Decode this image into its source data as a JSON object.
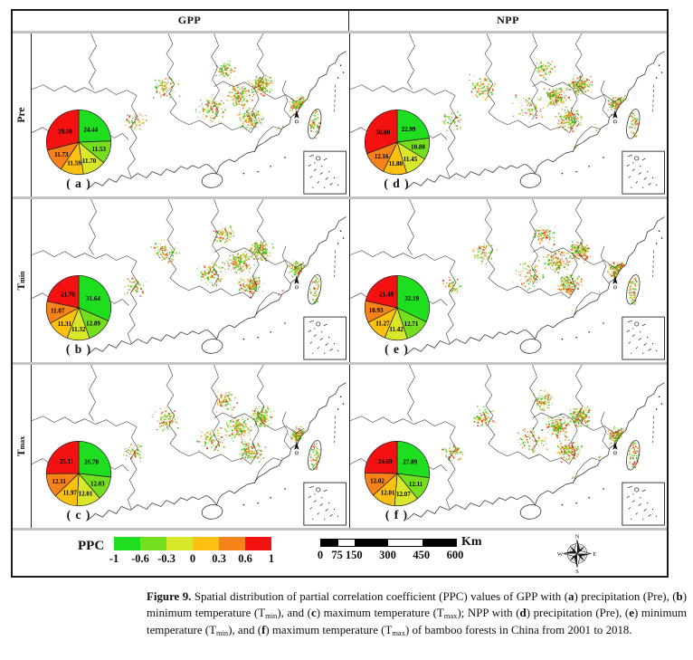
{
  "header": {
    "gpp": "GPP",
    "npp": "NPP"
  },
  "rows": [
    {
      "label": "Pre",
      "sub": ""
    },
    {
      "label": "T",
      "sub": "min"
    },
    {
      "label": "T",
      "sub": "max"
    }
  ],
  "panels": [
    {
      "id": "a",
      "tag": "( a )",
      "row": "Pre",
      "column": "GPP",
      "pie": {
        "values": [
          "24.44",
          "11.53",
          "11.70",
          "11.59",
          "11.73",
          "29.00"
        ]
      }
    },
    {
      "id": "b",
      "tag": "( b )",
      "row": "Tmin",
      "column": "GPP",
      "pie": {
        "values": [
          "31.64",
          "12.89",
          "11.32",
          "11.31",
          "11.07",
          "21.76"
        ]
      }
    },
    {
      "id": "c",
      "tag": "( c )",
      "row": "Tmax",
      "column": "GPP",
      "pie": {
        "values": [
          "26.78",
          "12.03",
          "12.01",
          "11.97",
          "12.11",
          "25.11"
        ]
      }
    },
    {
      "id": "d",
      "tag": "( d )",
      "row": "Pre",
      "column": "NPP",
      "pie": {
        "values": [
          "22.99",
          "10.80",
          "11.45",
          "11.80",
          "12.16",
          "30.80"
        ]
      }
    },
    {
      "id": "e",
      "tag": "( e )",
      "row": "Tmin",
      "column": "NPP",
      "pie": {
        "values": [
          "32.19",
          "12.71",
          "11.42",
          "11.27",
          "10.93",
          "21.49"
        ]
      }
    },
    {
      "id": "f",
      "tag": "( f )",
      "row": "Tmax",
      "column": "NPP",
      "pie": {
        "values": [
          "27.09",
          "12.11",
          "12.07",
          "12.01",
          "12.02",
          "24.69"
        ]
      }
    }
  ],
  "legend": {
    "title": "PPC",
    "colors": [
      "#1fdd1f",
      "#74df1e",
      "#d9e72b",
      "#fcc011",
      "#f6821a",
      "#f31111"
    ],
    "ticks": [
      "-1",
      "-0.6",
      "-0.3",
      "0",
      "0.3",
      "0.6",
      "1"
    ]
  },
  "scalebar": {
    "labels": [
      "0",
      "75",
      "150",
      "300",
      "450",
      "600"
    ],
    "unit": "Km"
  },
  "compass": {
    "n": "N",
    "e": "E",
    "s": "S",
    "w": "W"
  },
  "caption": {
    "runs": [
      {
        "t": "Figure 9.",
        "b": true
      },
      {
        "t": " Spatial distribution of partial correlation coefficient (PPC) values of GPP with ("
      },
      {
        "t": "a",
        "b": true
      },
      {
        "t": ") precipitation (Pre), ("
      },
      {
        "t": "b",
        "b": true
      },
      {
        "t": ") minimum temperature (T"
      },
      {
        "t": "min",
        "sub": true
      },
      {
        "t": "), and ("
      },
      {
        "t": "c",
        "b": true
      },
      {
        "t": ") maximum temperature (T"
      },
      {
        "t": "max",
        "sub": true
      },
      {
        "t": "); NPP with ("
      },
      {
        "t": "d",
        "b": true
      },
      {
        "t": ") precipitation (Pre), ("
      },
      {
        "t": "e",
        "b": true
      },
      {
        "t": ") minimum temperature (T"
      },
      {
        "t": "min",
        "sub": true
      },
      {
        "t": "), and ("
      },
      {
        "t": "f",
        "b": true
      },
      {
        "t": ") maximum temperature (T"
      },
      {
        "t": "max",
        "sub": true
      },
      {
        "t": ") of bamboo forests in China from 2001 to 2018."
      }
    ]
  },
  "chart_data": [
    {
      "type": "pie",
      "panel": "a",
      "title": "GPP vs Pre",
      "categories": [
        "-1 to -0.6",
        "-0.6 to -0.3",
        "-0.3 to 0",
        "0 to 0.3",
        "0.3 to 0.6",
        "0.6 to 1"
      ],
      "values": [
        24.44,
        11.53,
        11.7,
        11.59,
        11.73,
        29.0
      ]
    },
    {
      "type": "pie",
      "panel": "b",
      "title": "GPP vs Tmin",
      "categories": [
        "-1 to -0.6",
        "-0.6 to -0.3",
        "-0.3 to 0",
        "0 to 0.3",
        "0.3 to 0.6",
        "0.6 to 1"
      ],
      "values": [
        31.64,
        12.89,
        11.32,
        11.31,
        11.07,
        21.76
      ]
    },
    {
      "type": "pie",
      "panel": "c",
      "title": "GPP vs Tmax",
      "categories": [
        "-1 to -0.6",
        "-0.6 to -0.3",
        "-0.3 to 0",
        "0 to 0.3",
        "0.3 to 0.6",
        "0.6 to 1"
      ],
      "values": [
        26.78,
        12.03,
        12.01,
        11.97,
        12.11,
        25.11
      ]
    },
    {
      "type": "pie",
      "panel": "d",
      "title": "NPP vs Pre",
      "categories": [
        "-1 to -0.6",
        "-0.6 to -0.3",
        "-0.3 to 0",
        "0 to 0.3",
        "0.3 to 0.6",
        "0.6 to 1"
      ],
      "values": [
        22.99,
        10.8,
        11.45,
        11.8,
        12.16,
        30.8
      ]
    },
    {
      "type": "pie",
      "panel": "e",
      "title": "NPP vs Tmin",
      "categories": [
        "-1 to -0.6",
        "-0.6 to -0.3",
        "-0.3 to 0",
        "0 to 0.3",
        "0.3 to 0.6",
        "0.6 to 1"
      ],
      "values": [
        32.19,
        12.71,
        11.42,
        11.27,
        10.93,
        21.49
      ]
    },
    {
      "type": "pie",
      "panel": "f",
      "title": "NPP vs Tmax",
      "categories": [
        "-1 to -0.6",
        "-0.6 to -0.3",
        "-0.3 to 0",
        "0 to 0.3",
        "0.3 to 0.6",
        "0.6 to 1"
      ],
      "values": [
        27.09,
        12.11,
        12.07,
        12.01,
        12.02,
        24.69
      ]
    }
  ]
}
